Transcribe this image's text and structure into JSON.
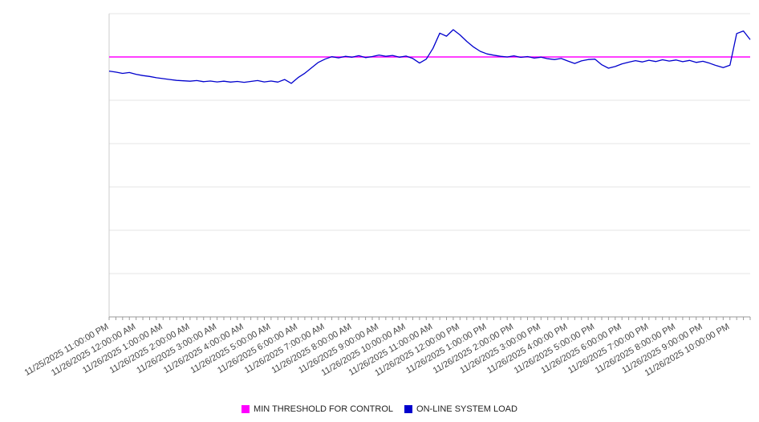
{
  "chart_data": {
    "type": "line",
    "title": "",
    "xlabel": "",
    "ylabel": "",
    "ylim": [
      0,
      140
    ],
    "y_gridline_step": 20,
    "grid": "horizontal",
    "legend_position": "bottom-center",
    "x_tick_labels": [
      "11/25/2025 11:00:00 PM",
      "11/26/2025 12:00:00 AM",
      "11/26/2025 1:00:00 AM",
      "11/26/2025 2:00:00 AM",
      "11/26/2025 3:00:00 AM",
      "11/26/2025 4:00:00 AM",
      "11/26/2025 5:00:00 AM",
      "11/26/2025 6:00:00 AM",
      "11/26/2025 7:00:00 AM",
      "11/26/2025 8:00:00 AM",
      "11/26/2025 9:00:00 AM",
      "11/26/2025 10:00:00 AM",
      "11/26/2025 11:00:00 AM",
      "11/26/2025 12:00:00 PM",
      "11/26/2025 1:00:00 PM",
      "11/26/2025 2:00:00 PM",
      "11/26/2025 3:00:00 PM",
      "11/26/2025 4:00:00 PM",
      "11/26/2025 5:00:00 PM",
      "11/26/2025 6:00:00 PM",
      "11/26/2025 7:00:00 PM",
      "11/26/2025 8:00:00 PM",
      "11/26/2025 9:00:00 PM",
      "11/26/2025 10:00:00 PM"
    ],
    "minor_ticks_per_hour": 4,
    "series": [
      {
        "name": "MIN THRESHOLD FOR CONTROL",
        "color": "#ff00ff",
        "style": "threshold",
        "value": 120
      },
      {
        "name": "ON-LINE SYSTEM LOAD",
        "color": "#0000cd",
        "style": "line",
        "start": "11/25/2025 11:00:00 PM",
        "interval_minutes": 15,
        "values": [
          113.5,
          113.0,
          112.4,
          112.8,
          112.0,
          111.4,
          111.0,
          110.4,
          110.0,
          109.6,
          109.2,
          109.0,
          108.8,
          109.1,
          108.6,
          108.9,
          108.5,
          108.8,
          108.4,
          108.7,
          108.3,
          108.7,
          109.1,
          108.5,
          108.9,
          108.4,
          109.6,
          107.8,
          110.5,
          112.5,
          115.0,
          117.5,
          119.0,
          120.1,
          119.6,
          120.3,
          119.9,
          120.6,
          119.7,
          120.2,
          120.9,
          120.3,
          120.7,
          119.9,
          120.4,
          119.3,
          117.2,
          119.0,
          124.0,
          131.0,
          129.6,
          132.6,
          130.2,
          127.2,
          124.6,
          122.6,
          121.4,
          120.8,
          120.3,
          120.0,
          120.5,
          119.8,
          120.2,
          119.5,
          119.9,
          119.2,
          118.8,
          119.3,
          118.1,
          117.0,
          118.2,
          118.8,
          119.0,
          116.4,
          114.8,
          115.6,
          116.8,
          117.6,
          118.3,
          117.7,
          118.5,
          117.9,
          118.7,
          118.1,
          118.6,
          117.8,
          118.4,
          117.5,
          118.0,
          117.1,
          116.0,
          115.1,
          116.2,
          130.8,
          132.0,
          128.0
        ]
      }
    ]
  }
}
